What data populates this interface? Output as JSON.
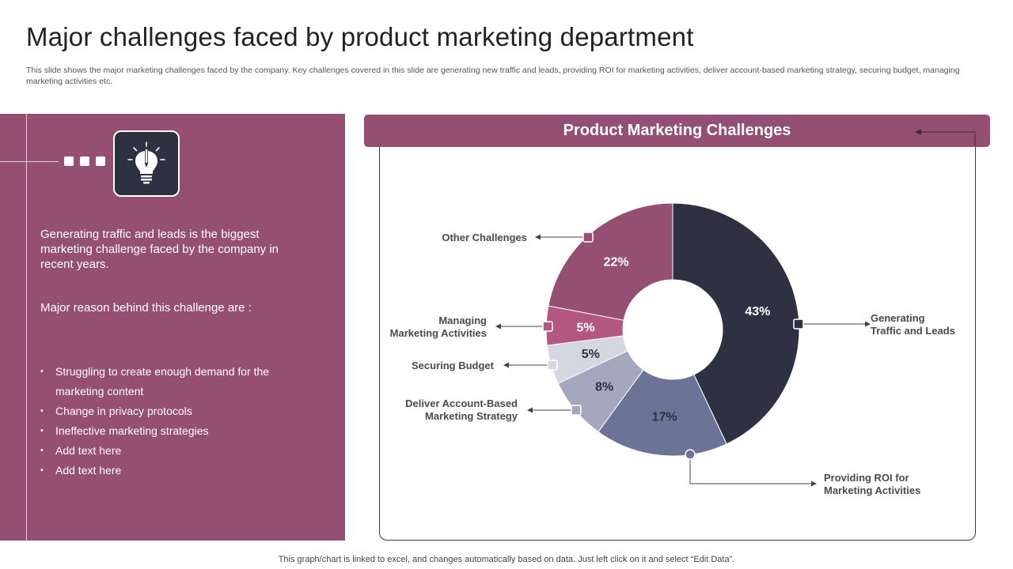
{
  "page": {
    "title": "Major challenges faced by product marketing department",
    "subtitle": "This slide shows the major marketing challenges faced by the company. Key challenges covered in this slide are generating new traffic and leads, providing ROI for marketing activities, deliver account-based marketing strategy, securing budget, managing marketing activities etc.",
    "footer": "This graph/chart is linked to excel,  and changes automatically based on data. Just left click on it and select “Edit Data”."
  },
  "left_panel": {
    "icon": "idea-lightbulb-pencil-icon",
    "text1": "Generating traffic and leads is the biggest marketing challenge faced by the company in recent years.",
    "text2": "Major reason behind this challenge are :",
    "bullets": [
      "Struggling to create enough demand for the marketing content",
      "Change in privacy protocols",
      "Ineffective marketing strategies",
      "Add text here",
      "Add text here"
    ]
  },
  "colors": {
    "accent": "#944f72",
    "dark": "#2e3142"
  },
  "chart_data": {
    "type": "pie",
    "variant": "donut",
    "title": "Product Marketing Challenges",
    "categories": [
      "Generating Traffic and Leads",
      "Providing ROI for Marketing Activities",
      "Deliver Account-Based Marketing Strategy",
      "Securing Budget",
      "Managing Marketing Activities",
      "Other Challenges"
    ],
    "values": [
      43,
      17,
      8,
      5,
      5,
      22
    ],
    "value_labels": [
      "43%",
      "17%",
      "8%",
      "5%",
      "5%",
      "22%"
    ],
    "label_lines": [
      [
        "Generating",
        "Traffic and Leads"
      ],
      [
        "Providing ROI for",
        "Marketing Activities"
      ],
      [
        "Deliver Account-Based",
        "Marketing Strategy"
      ],
      [
        "Securing Budget"
      ],
      [
        "Managing",
        "Marketing Activities"
      ],
      [
        "Other Challenges"
      ]
    ],
    "colors": [
      "#2e3142",
      "#6b7397",
      "#a3a8be",
      "#d4d6e0",
      "#b2587f",
      "#944f72"
    ],
    "start_angle_deg": 0,
    "direction": "clockwise"
  }
}
